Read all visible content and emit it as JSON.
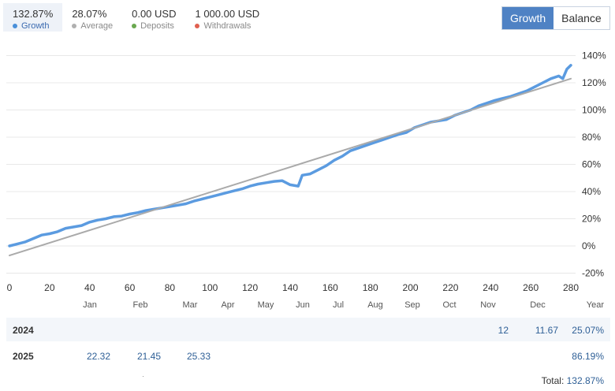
{
  "stats": [
    {
      "value": "132.87%",
      "label": "Growth",
      "color": "#4a90d9",
      "active": true
    },
    {
      "value": "28.07%",
      "label": "Average",
      "color": "#b0b0b0",
      "active": false
    },
    {
      "value": "0.00 USD",
      "label": "Deposits",
      "color": "#6aa84f",
      "active": false
    },
    {
      "value": "1 000.00 USD",
      "label": "Withdrawals",
      "color": "#e06050",
      "active": false
    }
  ],
  "toggle": {
    "growth_label": "Growth",
    "balance_label": "Balance",
    "selected": "Growth"
  },
  "chart_data": {
    "type": "line",
    "x_ticks": [
      "0",
      "20",
      "40",
      "60",
      "80",
      "100",
      "120",
      "140",
      "160",
      "180",
      "200",
      "220",
      "240",
      "260",
      "280"
    ],
    "y_ticks": [
      "140%",
      "120%",
      "100%",
      "80%",
      "60%",
      "40%",
      "20%",
      "0%",
      "-20%"
    ],
    "xlim": [
      0,
      280
    ],
    "ylim": [
      -20,
      140
    ],
    "grid": true,
    "series": [
      {
        "color": "#5b9be0",
        "x": [
          0,
          4,
          8,
          12,
          16,
          20,
          24,
          28,
          32,
          36,
          40,
          44,
          48,
          52,
          56,
          60,
          64,
          68,
          72,
          76,
          80,
          84,
          88,
          92,
          96,
          100,
          104,
          108,
          112,
          116,
          120,
          124,
          128,
          132,
          136,
          140,
          144,
          146,
          150,
          154,
          158,
          162,
          166,
          170,
          174,
          178,
          182,
          186,
          190,
          194,
          198,
          202,
          206,
          210,
          214,
          218,
          222,
          226,
          230,
          234,
          238,
          242,
          246,
          250,
          254,
          258,
          262,
          266,
          270,
          274,
          276,
          278,
          280
        ],
        "y": [
          0,
          1.5,
          3,
          5.5,
          8,
          9,
          10.5,
          13,
          14,
          15,
          17.5,
          19,
          20,
          21.5,
          22,
          23.5,
          24.5,
          26,
          27,
          28,
          29,
          30,
          31,
          33,
          34.5,
          36,
          37.5,
          39,
          40.5,
          42,
          44,
          45.5,
          46.5,
          47.5,
          48,
          45,
          44,
          52,
          53,
          56,
          59,
          63,
          66,
          70,
          72,
          74,
          76,
          78,
          80,
          82,
          83.5,
          87,
          89,
          91,
          92,
          93,
          96,
          98,
          100,
          103,
          105,
          107,
          108.5,
          110,
          112,
          114,
          117,
          120,
          123,
          125,
          123,
          130,
          132.87
        ]
      },
      {
        "color": "#aaaaaa",
        "x": [
          0,
          280
        ],
        "y": [
          -7,
          123
        ]
      }
    ]
  },
  "months": [
    "Jan",
    "Feb",
    "Mar",
    "Apr",
    "May",
    "Jun",
    "Jul",
    "Aug",
    "Sep",
    "Oct",
    "Nov",
    "Dec",
    "Year"
  ],
  "years": [
    {
      "year": "2024",
      "cells": [
        "",
        "",
        "",
        "",
        "",
        "",
        "",
        "",
        "",
        "",
        "12",
        "11.67"
      ],
      "total": "25.07%"
    },
    {
      "year": "2025",
      "cells": [
        "22.32",
        "21.45",
        "25.33",
        "",
        "",
        "",
        "",
        "",
        "",
        "",
        "",
        ""
      ],
      "total": "86.19%"
    }
  ],
  "total": {
    "label": "Total:",
    "value": "132.87%"
  },
  "footnote": "·"
}
